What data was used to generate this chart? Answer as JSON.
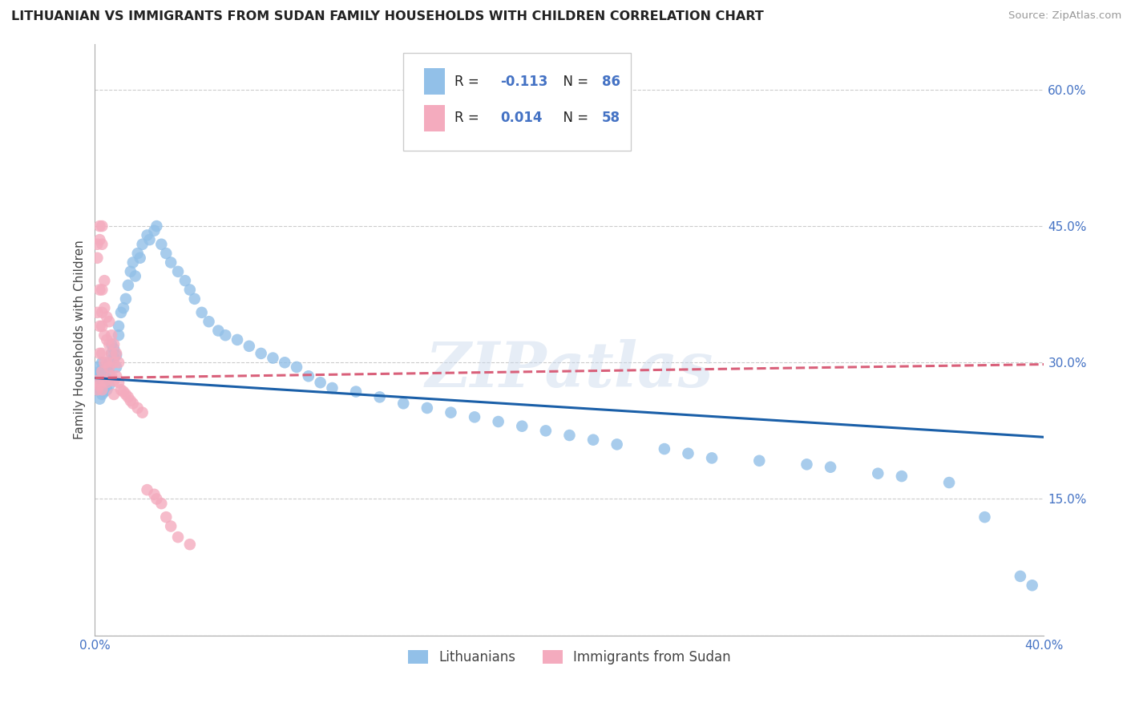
{
  "title": "LITHUANIAN VS IMMIGRANTS FROM SUDAN FAMILY HOUSEHOLDS WITH CHILDREN CORRELATION CHART",
  "source": "Source: ZipAtlas.com",
  "ylabel": "Family Households with Children",
  "xlim": [
    0.0,
    0.4
  ],
  "ylim": [
    0.0,
    0.65
  ],
  "xticks": [
    0.0,
    0.05,
    0.1,
    0.15,
    0.2,
    0.25,
    0.3,
    0.35,
    0.4
  ],
  "xticklabels": [
    "0.0%",
    "",
    "",
    "",
    "",
    "",
    "",
    "",
    "40.0%"
  ],
  "yticks": [
    0.0,
    0.15,
    0.3,
    0.45,
    0.6
  ],
  "yticklabels": [
    "",
    "15.0%",
    "30.0%",
    "45.0%",
    "60.0%"
  ],
  "R_blue": -0.113,
  "N_blue": 86,
  "R_pink": 0.014,
  "N_pink": 58,
  "blue_color": "#92C0E8",
  "pink_color": "#F4ABBE",
  "blue_line_color": "#1A5FA8",
  "pink_line_color": "#D9607A",
  "legend_label_blue": "Lithuanians",
  "legend_label_pink": "Immigrants from Sudan",
  "watermark": "ZIPatlas",
  "blue_line_start_y": 0.283,
  "blue_line_end_y": 0.218,
  "pink_line_start_y": 0.283,
  "pink_line_end_y": 0.298,
  "blue_scatter_x": [
    0.001,
    0.001,
    0.001,
    0.002,
    0.002,
    0.002,
    0.002,
    0.003,
    0.003,
    0.003,
    0.003,
    0.004,
    0.004,
    0.004,
    0.005,
    0.005,
    0.005,
    0.006,
    0.006,
    0.006,
    0.007,
    0.007,
    0.008,
    0.008,
    0.009,
    0.009,
    0.01,
    0.01,
    0.011,
    0.012,
    0.013,
    0.014,
    0.015,
    0.016,
    0.017,
    0.018,
    0.019,
    0.02,
    0.022,
    0.023,
    0.025,
    0.026,
    0.028,
    0.03,
    0.032,
    0.035,
    0.038,
    0.04,
    0.042,
    0.045,
    0.048,
    0.052,
    0.055,
    0.06,
    0.065,
    0.07,
    0.075,
    0.08,
    0.085,
    0.09,
    0.095,
    0.1,
    0.11,
    0.12,
    0.13,
    0.14,
    0.15,
    0.16,
    0.17,
    0.18,
    0.19,
    0.2,
    0.21,
    0.22,
    0.24,
    0.25,
    0.26,
    0.28,
    0.3,
    0.31,
    0.33,
    0.34,
    0.36,
    0.375,
    0.39,
    0.395
  ],
  "blue_scatter_y": [
    0.27,
    0.285,
    0.295,
    0.26,
    0.272,
    0.28,
    0.29,
    0.265,
    0.275,
    0.285,
    0.3,
    0.268,
    0.278,
    0.292,
    0.27,
    0.282,
    0.295,
    0.275,
    0.288,
    0.3,
    0.31,
    0.32,
    0.305,
    0.315,
    0.295,
    0.308,
    0.33,
    0.34,
    0.355,
    0.36,
    0.37,
    0.385,
    0.4,
    0.41,
    0.395,
    0.42,
    0.415,
    0.43,
    0.44,
    0.435,
    0.445,
    0.45,
    0.43,
    0.42,
    0.41,
    0.4,
    0.39,
    0.38,
    0.37,
    0.355,
    0.345,
    0.335,
    0.33,
    0.325,
    0.318,
    0.31,
    0.305,
    0.3,
    0.295,
    0.285,
    0.278,
    0.272,
    0.268,
    0.262,
    0.255,
    0.25,
    0.245,
    0.24,
    0.235,
    0.23,
    0.225,
    0.22,
    0.215,
    0.21,
    0.205,
    0.2,
    0.195,
    0.192,
    0.188,
    0.185,
    0.178,
    0.175,
    0.168,
    0.13,
    0.065,
    0.055
  ],
  "pink_scatter_x": [
    0.001,
    0.001,
    0.001,
    0.001,
    0.001,
    0.002,
    0.002,
    0.002,
    0.002,
    0.002,
    0.002,
    0.003,
    0.003,
    0.003,
    0.003,
    0.003,
    0.003,
    0.003,
    0.003,
    0.004,
    0.004,
    0.004,
    0.004,
    0.004,
    0.005,
    0.005,
    0.005,
    0.005,
    0.006,
    0.006,
    0.006,
    0.007,
    0.007,
    0.007,
    0.008,
    0.008,
    0.008,
    0.008,
    0.009,
    0.009,
    0.01,
    0.01,
    0.011,
    0.012,
    0.013,
    0.014,
    0.015,
    0.016,
    0.018,
    0.02,
    0.022,
    0.025,
    0.026,
    0.028,
    0.03,
    0.032,
    0.035,
    0.04
  ],
  "pink_scatter_y": [
    0.415,
    0.43,
    0.355,
    0.28,
    0.27,
    0.435,
    0.45,
    0.38,
    0.34,
    0.31,
    0.275,
    0.45,
    0.43,
    0.38,
    0.355,
    0.34,
    0.31,
    0.29,
    0.27,
    0.39,
    0.36,
    0.33,
    0.3,
    0.28,
    0.35,
    0.325,
    0.3,
    0.278,
    0.345,
    0.32,
    0.295,
    0.33,
    0.31,
    0.285,
    0.32,
    0.3,
    0.28,
    0.265,
    0.31,
    0.285,
    0.3,
    0.278,
    0.27,
    0.268,
    0.265,
    0.262,
    0.258,
    0.255,
    0.25,
    0.245,
    0.16,
    0.155,
    0.15,
    0.145,
    0.13,
    0.12,
    0.108,
    0.1
  ]
}
